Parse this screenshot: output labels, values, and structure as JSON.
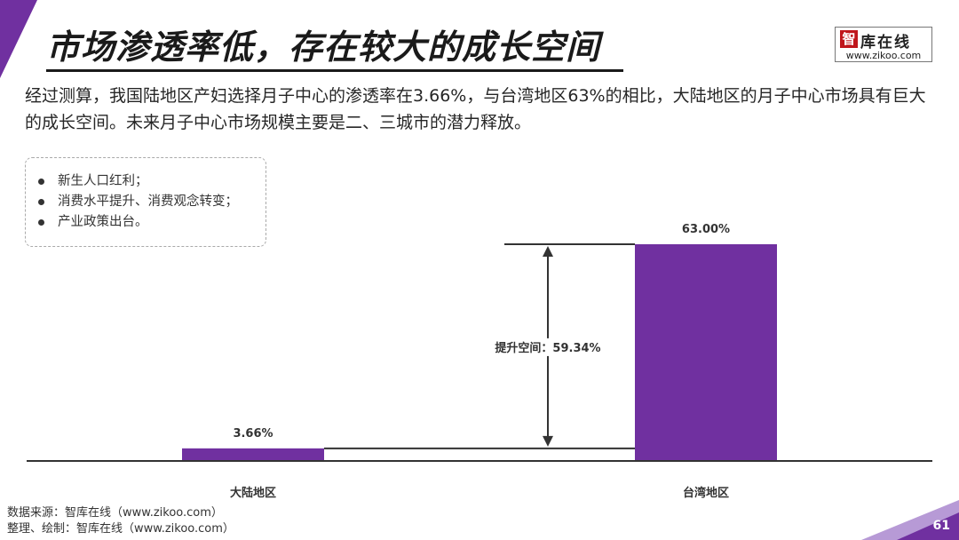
{
  "header": {
    "title": "市场渗透率低，存在较大的成长空间",
    "logo_name": "库在线",
    "logo_mark": "智",
    "logo_url": "www.zikoo.com"
  },
  "intro": "经过测算，我国陆地区产妇选择月子中心的渗透率在3.66%，与台湾地区63%的相比，大陆地区的月子中心市场具有巨大的成长空间。未来月子中心市场规模主要是二、三城市的潜力释放。",
  "notes": [
    "新生人口红利；",
    "消费水平提升、消费观念转变；",
    "产业政策出台。"
  ],
  "chart_data": {
    "type": "bar",
    "categories": [
      "大陆地区",
      "台湾地区"
    ],
    "values": [
      3.66,
      63.0
    ],
    "data_labels": [
      "3.66%",
      "63.00%"
    ],
    "value_unit": "%",
    "ylim": [
      0,
      63
    ],
    "annotation": {
      "label": "提升空间：59.34%",
      "from_value": 3.66,
      "to_value": 63.0
    },
    "colors": {
      "bar": "#7030a0",
      "axis": "#333333"
    },
    "grid": false
  },
  "footer": {
    "source": "数据来源：智库在线（www.zikoo.com）",
    "credit": "整理、绘制：智库在线（www.zikoo.com）"
  },
  "page_number": "61",
  "theme": {
    "accent": "#7030a0",
    "accent_light": "#b79ad6",
    "logo_red": "#c0161c"
  }
}
